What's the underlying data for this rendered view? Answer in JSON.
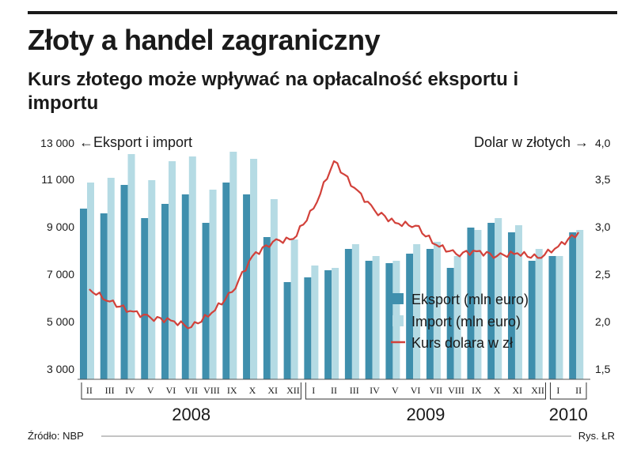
{
  "title": "Złoty a handel zagraniczny",
  "subtitle": "Kurs złotego może wpływać na opłacalność eksportu i importu",
  "source": "Źródło: NBP",
  "credit": "Rys. ŁR",
  "chart_data": {
    "type": "bar",
    "left_axis_label": "←Eksport i import",
    "right_axis_label": "Dolar w złotych →",
    "ylim_left": [
      3000,
      13000
    ],
    "yticks_left": [
      "3 000",
      "5 000",
      "7 000",
      "9 000",
      "11 000",
      "13 000"
    ],
    "ylim_right": [
      1.5,
      4.0
    ],
    "yticks_right": [
      "1,5",
      "2,0",
      "2,5",
      "3,0",
      "3,5",
      "4,0"
    ],
    "categories": [
      "II",
      "III",
      "IV",
      "V",
      "VI",
      "VII",
      "VIII",
      "IX",
      "X",
      "XI",
      "XII",
      "I",
      "II",
      "III",
      "IV",
      "V",
      "VI",
      "VII",
      "VIII",
      "IX",
      "X",
      "XI",
      "XII",
      "I",
      "II"
    ],
    "years": [
      {
        "label": "2008",
        "from": 0,
        "to": 10
      },
      {
        "label": "2009",
        "from": 11,
        "to": 22
      },
      {
        "label": "2010",
        "from": 23,
        "to": 24
      }
    ],
    "series": [
      {
        "name": "Eksport (mln euro)",
        "type": "bar",
        "color": "#3f8fad",
        "values": [
          10200,
          10000,
          11200,
          9800,
          10400,
          10800,
          9600,
          11300,
          10800,
          9000,
          7100,
          7300,
          7600,
          8500,
          8000,
          7900,
          8300,
          8500,
          7700,
          9400,
          9600,
          9200,
          8000,
          8200,
          9200
        ]
      },
      {
        "name": "Import (mln euro)",
        "type": "bar",
        "color": "#b5dbe4",
        "values": [
          11300,
          11500,
          12500,
          11400,
          12200,
          12400,
          11000,
          12600,
          12300,
          10600,
          8900,
          7800,
          7700,
          8700,
          8200,
          8000,
          8700,
          8800,
          8200,
          9300,
          9800,
          9500,
          8500,
          8200,
          9300
        ]
      },
      {
        "name": "Kurs dolara w zł",
        "type": "line",
        "color": "#d2413a",
        "values": [
          2.45,
          2.32,
          2.22,
          2.15,
          2.12,
          2.05,
          2.2,
          2.42,
          2.8,
          2.95,
          2.98,
          3.3,
          3.8,
          3.52,
          3.28,
          3.15,
          3.12,
          2.92,
          2.82,
          2.85,
          2.8,
          2.83,
          2.78,
          2.9,
          3.05
        ]
      }
    ]
  }
}
